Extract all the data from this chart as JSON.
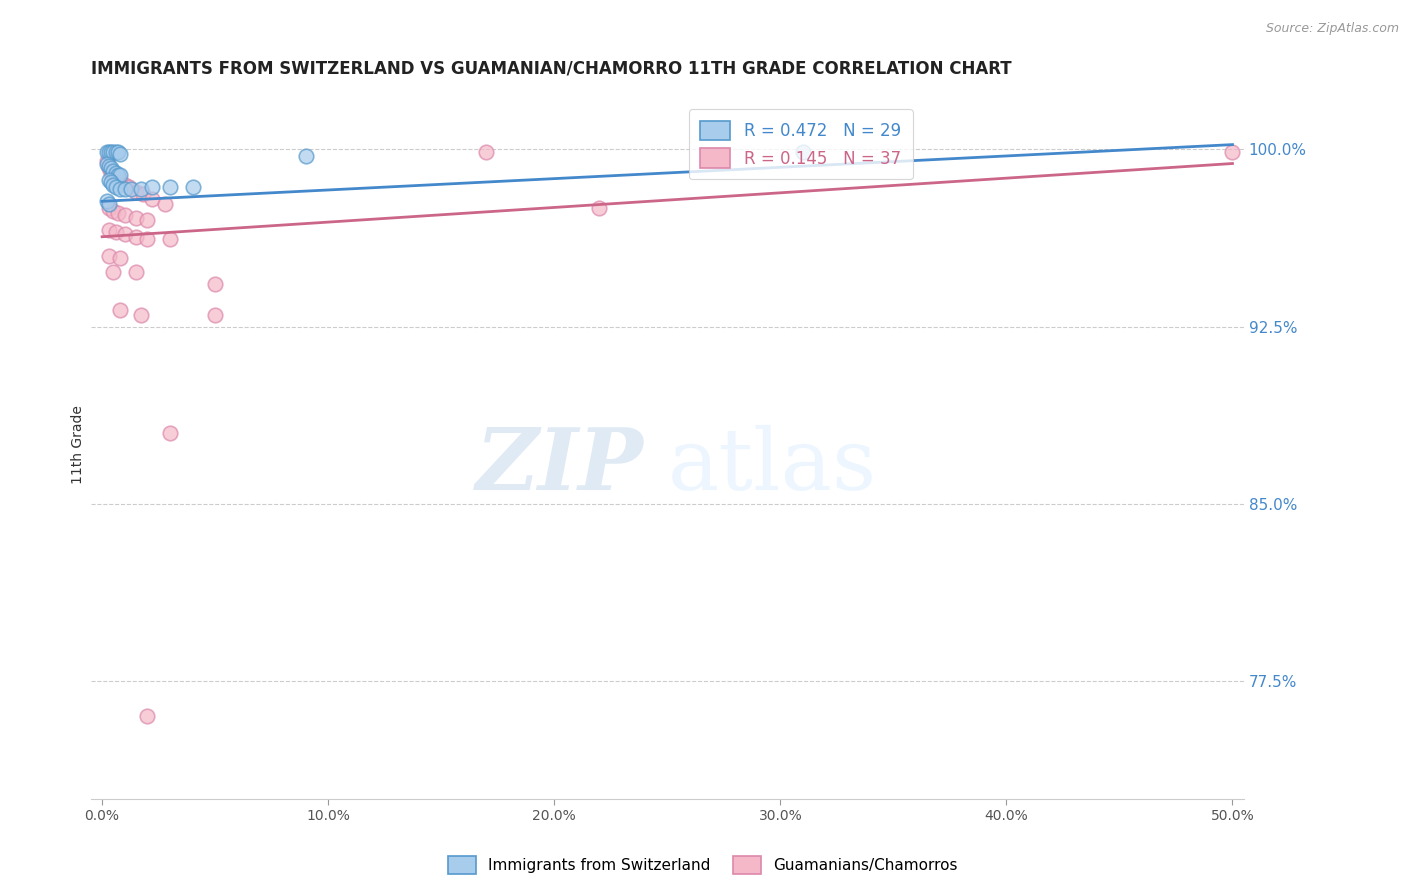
{
  "title": "IMMIGRANTS FROM SWITZERLAND VS GUAMANIAN/CHAMORRO 11TH GRADE CORRELATION CHART",
  "source": "Source: ZipAtlas.com",
  "ylabel": "11th Grade",
  "right_ytick_labels": [
    "100.0%",
    "92.5%",
    "85.0%",
    "77.5%"
  ],
  "right_ytick_values": [
    1.0,
    0.925,
    0.85,
    0.775
  ],
  "watermark_zip": "ZIP",
  "watermark_atlas": "atlas",
  "legend_blue_label": "R = 0.472",
  "legend_blue_n": "N = 29",
  "legend_pink_label": "R = 0.145",
  "legend_pink_n": "N = 37",
  "blue_color": "#a8ccec",
  "pink_color": "#f4b8c8",
  "blue_edge_color": "#5599cc",
  "pink_edge_color": "#dd88aa",
  "blue_line_color": "#4488cc",
  "pink_line_color": "#cc6688",
  "blue_scatter": [
    [
      0.002,
      0.999
    ],
    [
      0.003,
      0.999
    ],
    [
      0.004,
      0.999
    ],
    [
      0.005,
      0.999
    ],
    [
      0.006,
      0.999
    ],
    [
      0.007,
      0.999
    ],
    [
      0.008,
      0.998
    ],
    [
      0.002,
      0.994
    ],
    [
      0.003,
      0.993
    ],
    [
      0.004,
      0.992
    ],
    [
      0.005,
      0.991
    ],
    [
      0.006,
      0.99
    ],
    [
      0.007,
      0.989
    ],
    [
      0.008,
      0.989
    ],
    [
      0.003,
      0.987
    ],
    [
      0.004,
      0.986
    ],
    [
      0.005,
      0.985
    ],
    [
      0.006,
      0.984
    ],
    [
      0.008,
      0.983
    ],
    [
      0.01,
      0.983
    ],
    [
      0.013,
      0.983
    ],
    [
      0.017,
      0.983
    ],
    [
      0.022,
      0.984
    ],
    [
      0.03,
      0.984
    ],
    [
      0.04,
      0.984
    ],
    [
      0.002,
      0.978
    ],
    [
      0.003,
      0.977
    ],
    [
      0.09,
      0.997
    ],
    [
      0.31,
      0.999
    ]
  ],
  "pink_scatter": [
    [
      0.002,
      0.995
    ],
    [
      0.003,
      0.992
    ],
    [
      0.004,
      0.99
    ],
    [
      0.005,
      0.989
    ],
    [
      0.006,
      0.988
    ],
    [
      0.008,
      0.987
    ],
    [
      0.01,
      0.985
    ],
    [
      0.012,
      0.984
    ],
    [
      0.015,
      0.982
    ],
    [
      0.018,
      0.981
    ],
    [
      0.022,
      0.979
    ],
    [
      0.028,
      0.977
    ],
    [
      0.003,
      0.975
    ],
    [
      0.005,
      0.974
    ],
    [
      0.007,
      0.973
    ],
    [
      0.01,
      0.972
    ],
    [
      0.015,
      0.971
    ],
    [
      0.02,
      0.97
    ],
    [
      0.003,
      0.966
    ],
    [
      0.006,
      0.965
    ],
    [
      0.01,
      0.964
    ],
    [
      0.015,
      0.963
    ],
    [
      0.02,
      0.962
    ],
    [
      0.03,
      0.962
    ],
    [
      0.003,
      0.955
    ],
    [
      0.008,
      0.954
    ],
    [
      0.005,
      0.948
    ],
    [
      0.015,
      0.948
    ],
    [
      0.05,
      0.943
    ],
    [
      0.008,
      0.932
    ],
    [
      0.017,
      0.93
    ],
    [
      0.05,
      0.93
    ],
    [
      0.03,
      0.88
    ],
    [
      0.17,
      0.999
    ],
    [
      0.02,
      0.76
    ],
    [
      0.22,
      0.975
    ],
    [
      0.5,
      0.999
    ]
  ],
  "blue_line_x": [
    0.0,
    0.5
  ],
  "blue_line_y": [
    0.978,
    1.002
  ],
  "pink_line_x": [
    0.0,
    0.5
  ],
  "pink_line_y": [
    0.963,
    0.994
  ],
  "xlim": [
    -0.005,
    0.505
  ],
  "ylim": [
    0.725,
    1.025
  ],
  "x_ticks": [
    0.0,
    0.1,
    0.2,
    0.3,
    0.4,
    0.5
  ],
  "x_tick_labels": [
    "0.0%",
    "10.0%",
    "20.0%",
    "30.0%",
    "40.0%",
    "50.0%"
  ],
  "grid_color": "#cccccc",
  "background_color": "#ffffff",
  "title_fontsize": 12,
  "source_fontsize": 9,
  "axis_label_fontsize": 10,
  "tick_fontsize": 10,
  "marker_size": 110
}
